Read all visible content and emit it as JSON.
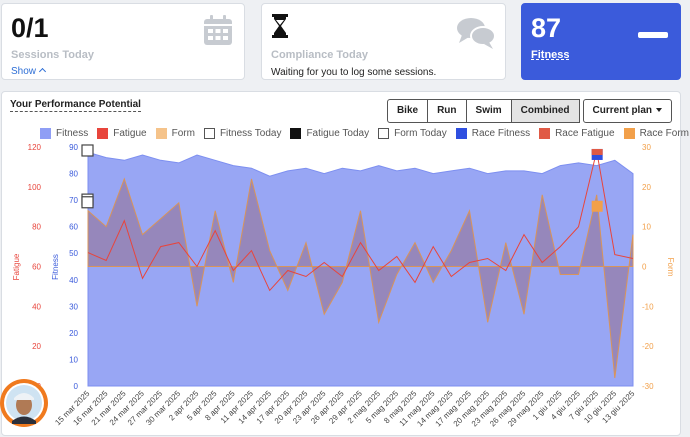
{
  "cards": {
    "sessions": {
      "value": "0/1",
      "label": "Sessions Today",
      "show_label": "Show"
    },
    "compliance": {
      "label": "Compliance Today",
      "message": "Waiting for you to log some sessions."
    },
    "fitness": {
      "value": "87",
      "label": "Fitness"
    }
  },
  "panel": {
    "title": "Your Performance Potential",
    "buttons": [
      "Bike",
      "Run",
      "Swim",
      "Combined"
    ],
    "active_button": "Combined",
    "plan_label": "Current plan"
  },
  "legend": [
    {
      "label": "Fitness",
      "color": "#8f9ef5",
      "style": "fill"
    },
    {
      "label": "Fatigue",
      "color": "#e8453c",
      "style": "fill"
    },
    {
      "label": "Form",
      "color": "#f5c38a",
      "style": "fill"
    },
    {
      "label": "Fitness Today",
      "color": "#555555",
      "style": "outline"
    },
    {
      "label": "Fatigue Today",
      "color": "#111111",
      "style": "fill"
    },
    {
      "label": "Form Today",
      "color": "#555555",
      "style": "outline"
    },
    {
      "label": "Race Fitness",
      "color": "#2f4fe0",
      "style": "fill"
    },
    {
      "label": "Race Fatigue",
      "color": "#e05a45",
      "style": "fill"
    },
    {
      "label": "Race Form",
      "color": "#f2a04a",
      "style": "fill"
    }
  ],
  "chart_data": {
    "type": "area",
    "x": [
      "15 mar 2025",
      "16 mar 2025",
      "21 mar 2025",
      "24 mar 2025",
      "27 mar 2025",
      "30 mar 2025",
      "2 apr 2025",
      "5 apr 2025",
      "8 apr 2025",
      "11 apr 2025",
      "14 apr 2025",
      "17 apr 2025",
      "20 apr 2025",
      "23 apr 2025",
      "26 apr 2025",
      "29 apr 2025",
      "2 mag 2025",
      "5 mag 2025",
      "8 mag 2025",
      "11 mag 2025",
      "14 mag 2025",
      "17 mag 2025",
      "20 mag 2025",
      "23 mag 2025",
      "26 mag 2025",
      "29 mag 2025",
      "1 giu 2025",
      "4 giu 2025",
      "7 giu 2025",
      "10 giu 2025",
      "13 giu 2025"
    ],
    "axes": {
      "fatigue": {
        "label": "Fatigue",
        "ticks": [
          0,
          20,
          40,
          60,
          80,
          100,
          120
        ],
        "color": "#e8453c"
      },
      "fitness": {
        "label": "Fitness",
        "ticks": [
          0,
          10,
          20,
          30,
          40,
          50,
          60,
          70,
          80,
          90
        ],
        "color": "#3b5bdb"
      },
      "form": {
        "label": "Form",
        "ticks": [
          30,
          20,
          10,
          0,
          -10,
          -20,
          -30
        ],
        "color": "#f2a04a"
      }
    },
    "series": [
      {
        "name": "Fitness",
        "values": [
          88,
          86,
          85,
          87,
          85,
          84,
          87,
          85,
          83,
          82,
          79,
          81,
          82,
          80,
          82,
          81,
          83,
          81,
          82,
          80,
          81,
          82,
          80,
          81,
          81,
          80,
          83,
          84,
          83,
          85,
          80
        ]
      },
      {
        "name": "Fatigue",
        "values": [
          67,
          63,
          83,
          54,
          70,
          72,
          60,
          78,
          58,
          68,
          48,
          58,
          55,
          62,
          55,
          72,
          58,
          65,
          52,
          70,
          55,
          62,
          64,
          58,
          76,
          62,
          70,
          80,
          118,
          66,
          64
        ]
      },
      {
        "name": "Form",
        "values": [
          14,
          10,
          22,
          8,
          12,
          16,
          -10,
          14,
          -4,
          22,
          4,
          -6,
          6,
          -12,
          -4,
          14,
          -14,
          -2,
          6,
          -4,
          4,
          14,
          -14,
          6,
          -12,
          18,
          -2,
          -2,
          18,
          -28,
          8
        ]
      }
    ],
    "today_markers": {
      "fitness": 70,
      "form": 16,
      "fatigue": 118
    },
    "race_markers": {
      "fitness": 87,
      "fatigue": 117,
      "form": 15
    }
  }
}
